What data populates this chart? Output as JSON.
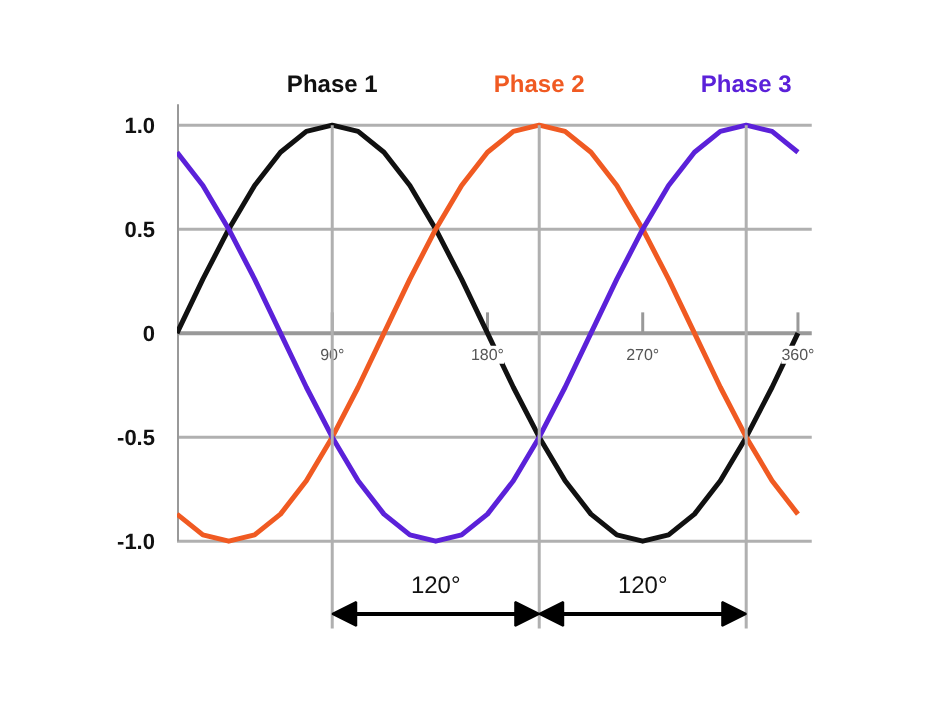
{
  "chart_data": {
    "type": "line",
    "x": [
      0,
      15,
      30,
      45,
      60,
      75,
      90,
      105,
      120,
      135,
      150,
      165,
      180,
      195,
      210,
      225,
      240,
      255,
      270,
      285,
      300,
      315,
      330,
      345,
      360
    ],
    "series": [
      {
        "name": "Phase 1",
        "color": "#111111",
        "values": [
          0,
          0.26,
          0.5,
          0.71,
          0.87,
          0.97,
          1,
          0.97,
          0.87,
          0.71,
          0.5,
          0.26,
          0,
          -0.26,
          -0.5,
          -0.71,
          -0.87,
          -0.97,
          -1,
          -0.97,
          -0.87,
          -0.71,
          -0.5,
          -0.26,
          0
        ]
      },
      {
        "name": "Phase 2",
        "color": "#f05a22",
        "values": [
          -0.87,
          -0.97,
          -1,
          -0.97,
          -0.87,
          -0.71,
          -0.5,
          -0.26,
          0,
          0.26,
          0.5,
          0.71,
          0.87,
          0.97,
          1,
          0.97,
          0.87,
          0.71,
          0.5,
          0.26,
          0,
          -0.26,
          -0.5,
          -0.71,
          -0.87
        ]
      },
      {
        "name": "Phase 3",
        "color": "#5b21d9",
        "values": [
          0.87,
          0.71,
          0.5,
          0.26,
          0,
          -0.26,
          -0.5,
          -0.71,
          -0.87,
          -0.97,
          -1,
          -0.97,
          -0.87,
          -0.71,
          -0.5,
          -0.26,
          0,
          0.26,
          0.5,
          0.71,
          0.87,
          0.97,
          1,
          0.97,
          0.87
        ]
      }
    ],
    "xlim": [
      0,
      368
    ],
    "ylim": [
      -1.0,
      1.1
    ],
    "xticks": [
      {
        "value": 90,
        "label": "90°"
      },
      {
        "value": 180,
        "label": "180°"
      },
      {
        "value": 270,
        "label": "270°"
      },
      {
        "value": 360,
        "label": "360°"
      }
    ],
    "yticks": [
      {
        "value": 1,
        "label": "1.0"
      },
      0.5,
      0,
      -0.5,
      {
        "value": -1,
        "label": "-1.0"
      }
    ],
    "ref_lines": [
      {
        "axis": "x",
        "value": 90,
        "color": "#b0b0b0"
      },
      {
        "axis": "x",
        "value": 210,
        "color": "#b0b0b0"
      },
      {
        "axis": "x",
        "value": 330,
        "color": "#b0b0b0"
      }
    ],
    "annotations": [
      "120°",
      "120°"
    ],
    "grid": "y",
    "legend": false,
    "line_style": "solid",
    "marker": "none"
  }
}
